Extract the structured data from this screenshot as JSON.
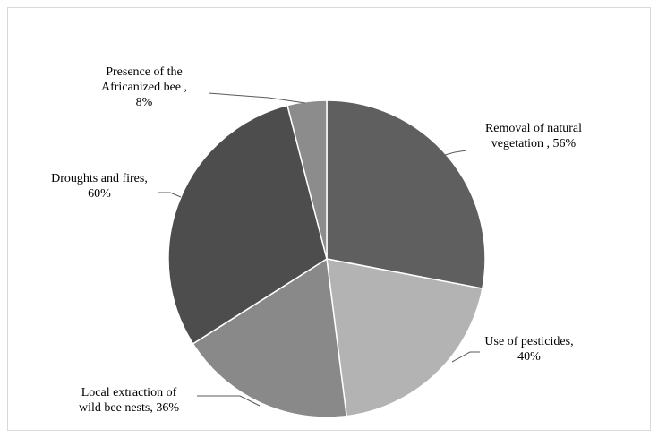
{
  "chart_data": {
    "type": "pie",
    "title": "",
    "slices": [
      {
        "name": "Removal of natural vegetation",
        "value": 56,
        "color": "#5f5f5f",
        "label_lines": [
          "Removal of natural",
          "vegetation , 56%"
        ]
      },
      {
        "name": "Use of pesticides",
        "value": 40,
        "color": "#b3b3b3",
        "label_lines": [
          "Use of pesticides,",
          "40%"
        ]
      },
      {
        "name": "Local extraction of wild bee nests",
        "value": 36,
        "color": "#898989",
        "label_lines": [
          "Local extraction of",
          "wild bee nests, 36%"
        ]
      },
      {
        "name": "Droughts and fires",
        "value": 60,
        "color": "#4d4d4d",
        "label_lines": [
          "Droughts and fires,",
          "60%"
        ]
      },
      {
        "name": "Presence of the Africanized bee",
        "value": 8,
        "color": "#8c8c8c",
        "label_lines": [
          "Presence of the",
          "Africanized bee ,",
          "8%"
        ]
      }
    ],
    "start_angle_deg": 0,
    "direction": "clockwise",
    "legend": "none",
    "data_labels": "outside with leader lines"
  }
}
